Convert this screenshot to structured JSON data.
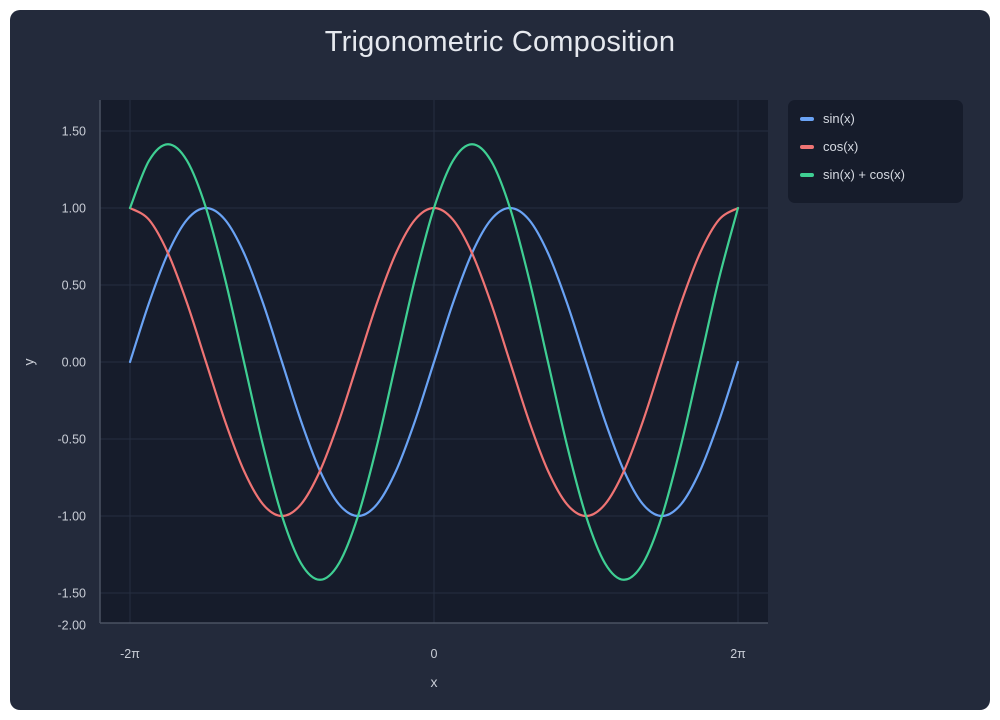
{
  "chart_data": {
    "type": "line",
    "title": "Trigonometric Composition",
    "xlabel": "x",
    "ylabel": "y",
    "xlim": [
      -6.2832,
      6.2832
    ],
    "ylim": [
      -2.0,
      1.7
    ],
    "xticks": [
      {
        "value": -6.2832,
        "label": "-2π"
      },
      {
        "value": 0,
        "label": "0"
      },
      {
        "value": 6.2832,
        "label": "2π"
      }
    ],
    "yticks": [
      {
        "value": 1.5,
        "label": "1.50"
      },
      {
        "value": 1.0,
        "label": "1.00"
      },
      {
        "value": 0.5,
        "label": "0.50"
      },
      {
        "value": 0.0,
        "label": "0.00"
      },
      {
        "value": -0.5,
        "label": "-0.50"
      },
      {
        "value": -1.0,
        "label": "-1.00"
      },
      {
        "value": -1.5,
        "label": "-1.50"
      },
      {
        "value": -2.0,
        "label": "-2.00"
      }
    ],
    "grid": true,
    "legend_position": "outside-right",
    "x": [
      -6.2832,
      -5.8905,
      -5.4978,
      -5.1051,
      -4.7124,
      -4.3197,
      -3.927,
      -3.5343,
      -3.1416,
      -2.7489,
      -2.3562,
      -1.9635,
      -1.5708,
      -1.1781,
      -0.7854,
      -0.3927,
      0.0,
      0.3927,
      0.7854,
      1.1781,
      1.5708,
      1.9635,
      2.3562,
      2.7489,
      3.1416,
      3.5343,
      3.927,
      4.3197,
      4.7124,
      5.1051,
      5.4978,
      5.8905,
      6.2832
    ],
    "series": [
      {
        "name": "sin(x)",
        "color": "#6aa3f5",
        "values": [
          0.0,
          0.383,
          0.707,
          0.924,
          1.0,
          0.924,
          0.707,
          0.383,
          0.0,
          -0.383,
          -0.707,
          -0.924,
          -1.0,
          -0.924,
          -0.707,
          -0.383,
          0.0,
          0.383,
          0.707,
          0.924,
          1.0,
          0.924,
          0.707,
          0.383,
          0.0,
          -0.383,
          -0.707,
          -0.924,
          -1.0,
          -0.924,
          -0.707,
          -0.383,
          0.0
        ]
      },
      {
        "name": "cos(x)",
        "color": "#ef7474",
        "values": [
          1.0,
          0.924,
          0.707,
          0.383,
          0.0,
          -0.383,
          -0.707,
          -0.924,
          -1.0,
          -0.924,
          -0.707,
          -0.383,
          0.0,
          0.383,
          0.707,
          0.924,
          1.0,
          0.924,
          0.707,
          0.383,
          0.0,
          -0.383,
          -0.707,
          -0.924,
          -1.0,
          -0.924,
          -0.707,
          -0.383,
          0.0,
          0.383,
          0.707,
          0.924,
          1.0
        ]
      },
      {
        "name": "sin(x) + cos(x)",
        "color": "#3fcf93",
        "values": [
          1.0,
          1.307,
          1.414,
          1.307,
          1.0,
          0.541,
          0.0,
          -0.541,
          -1.0,
          -1.307,
          -1.414,
          -1.307,
          -1.0,
          -0.541,
          0.0,
          0.541,
          1.0,
          1.307,
          1.414,
          1.307,
          1.0,
          0.541,
          0.0,
          -0.541,
          -1.0,
          -1.307,
          -1.414,
          -1.307,
          -1.0,
          -0.541,
          0.0,
          0.541,
          1.0
        ]
      }
    ]
  }
}
